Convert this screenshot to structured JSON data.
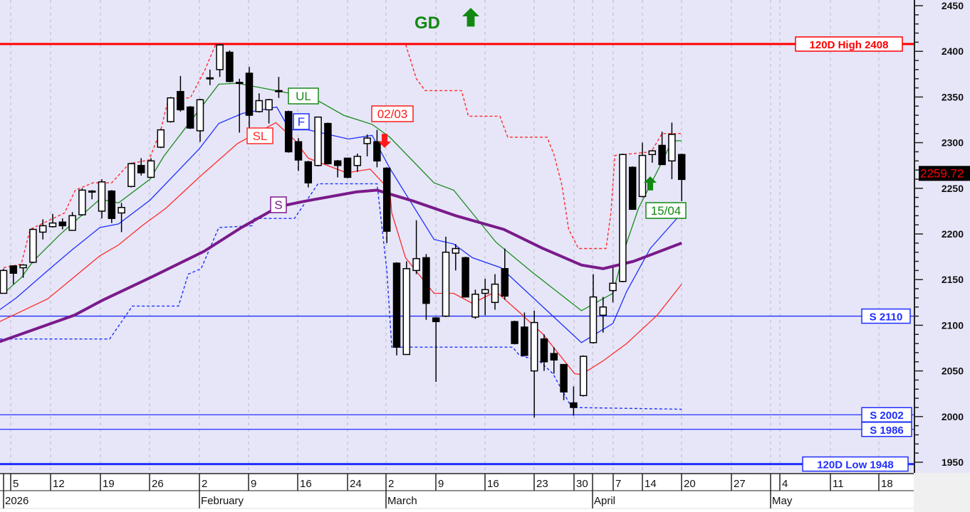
{
  "chart_data": {
    "type": "candlestick",
    "ylim": [
      1950,
      2450
    ],
    "y_ticks": [
      1950,
      2000,
      2050,
      2100,
      2150,
      2200,
      2250,
      2300,
      2350,
      2400,
      2450
    ],
    "grid": "vertical dashed weekly",
    "background_color": "#e6e6f8",
    "x_day_labels": [
      "",
      "5",
      "12",
      "19",
      "26",
      "2",
      "9",
      "16",
      "24",
      "2",
      "9",
      "16",
      "23",
      "30",
      "",
      "7",
      "14",
      "20",
      "27",
      "",
      "4",
      "11",
      "18"
    ],
    "x_month_labels": [
      "2026",
      "February",
      "March",
      "April",
      "May"
    ],
    "last_price": {
      "label": "2259.72",
      "value": 2259.72,
      "color": "#ff0000"
    },
    "candles": [
      [
        2135,
        2162,
        2135,
        2160
      ],
      [
        2165,
        2165,
        2145,
        2157
      ],
      [
        2163,
        2167,
        2152,
        2166
      ],
      [
        2169,
        2206,
        2168,
        2205
      ],
      [
        2202,
        2216,
        2194,
        2209
      ],
      [
        2208,
        2222,
        2207,
        2212
      ],
      [
        2213,
        2217,
        2205,
        2209
      ],
      [
        2204,
        2224,
        2204,
        2220
      ],
      [
        2221,
        2250,
        2220,
        2248
      ],
      [
        2247,
        2248,
        2238,
        2246
      ],
      [
        2225,
        2260,
        2217,
        2257
      ],
      [
        2247,
        2248,
        2212,
        2217
      ],
      [
        2223,
        2234,
        2202,
        2229
      ],
      [
        2252,
        2278,
        2251,
        2277
      ],
      [
        2275,
        2283,
        2264,
        2267
      ],
      [
        2262,
        2283,
        2261,
        2280
      ],
      [
        2295,
        2315,
        2294,
        2314
      ],
      [
        2323,
        2350,
        2322,
        2349
      ],
      [
        2356,
        2373,
        2334,
        2336
      ],
      [
        2339,
        2340,
        2315,
        2316
      ],
      [
        2313,
        2348,
        2301,
        2347
      ],
      [
        2371,
        2380,
        2363,
        2370
      ],
      [
        2380,
        2408,
        2372,
        2407
      ],
      [
        2399,
        2401,
        2366,
        2367
      ],
      [
        2366,
        2370,
        2311,
        2365
      ],
      [
        2376,
        2383,
        2313,
        2330
      ],
      [
        2334,
        2354,
        2333,
        2346
      ],
      [
        2336,
        2348,
        2321,
        2347
      ],
      [
        2356,
        2372,
        2349,
        2357
      ],
      [
        2334,
        2335,
        2289,
        2290
      ],
      [
        2301,
        2305,
        2269,
        2281
      ],
      [
        2279,
        2280,
        2251,
        2256
      ],
      [
        2275,
        2328,
        2274,
        2328
      ],
      [
        2321,
        2322,
        2276,
        2277
      ],
      [
        2280,
        2281,
        2262,
        2275
      ],
      [
        2283,
        2283,
        2261,
        2262
      ],
      [
        2275,
        2288,
        2268,
        2285
      ],
      [
        2299,
        2309,
        2285,
        2305
      ],
      [
        2301,
        2314,
        2273,
        2280
      ],
      [
        2272,
        2273,
        2190,
        2203
      ],
      [
        2168,
        2169,
        2067,
        2076
      ],
      [
        2068,
        2170,
        2068,
        2162
      ],
      [
        2160,
        2215,
        2156,
        2173
      ],
      [
        2174,
        2178,
        2106,
        2124
      ],
      [
        2108,
        2109,
        2038,
        2104
      ],
      [
        2110,
        2197,
        2109,
        2180
      ],
      [
        2179,
        2189,
        2160,
        2184
      ],
      [
        2174,
        2175,
        2131,
        2131
      ],
      [
        2109,
        2139,
        2107,
        2134
      ],
      [
        2135,
        2151,
        2111,
        2139
      ],
      [
        2125,
        2156,
        2117,
        2145
      ],
      [
        2162,
        2184,
        2128,
        2132
      ],
      [
        2104,
        2105,
        2079,
        2080
      ],
      [
        2098,
        2114,
        2066,
        2067
      ],
      [
        2050,
        2116,
        1999,
        2103
      ],
      [
        2085,
        2090,
        2050,
        2060
      ],
      [
        2069,
        2076,
        2047,
        2062
      ],
      [
        2057,
        2057,
        2018,
        2027
      ],
      [
        2015,
        2033,
        2001,
        2010
      ],
      [
        2023,
        2067,
        2022,
        2066
      ],
      [
        2081,
        2156,
        2080,
        2131
      ],
      [
        2111,
        2131,
        2092,
        2120
      ],
      [
        2138,
        2163,
        2125,
        2146
      ],
      [
        2148,
        2288,
        2147,
        2287
      ],
      [
        2273,
        2274,
        2227,
        2227
      ],
      [
        2241,
        2300,
        2240,
        2286
      ],
      [
        2287,
        2292,
        2278,
        2291
      ],
      [
        2297,
        2312,
        2276,
        2276
      ],
      [
        2280,
        2322,
        2260,
        2309
      ],
      [
        2287,
        2288,
        2236,
        2259.72
      ]
    ],
    "candle_format": [
      "open",
      "high",
      "low",
      "close"
    ],
    "series": [
      {
        "name": "UL",
        "color": "#1a8a1a",
        "style": "solid",
        "points": [
          [
            1,
            2135
          ],
          [
            2.8,
            2152
          ],
          [
            4,
            2170
          ],
          [
            6.7,
            2199
          ],
          [
            10.8,
            2238
          ],
          [
            12.7,
            2234
          ],
          [
            15.9,
            2260
          ],
          [
            17.3,
            2285
          ],
          [
            22.9,
            2364
          ],
          [
            24.8,
            2365
          ],
          [
            28.7,
            2357
          ],
          [
            32.5,
            2349
          ],
          [
            35.6,
            2330
          ],
          [
            38.5,
            2320
          ],
          [
            40.3,
            2306
          ],
          [
            44.8,
            2256
          ],
          [
            46.8,
            2248
          ],
          [
            51.1,
            2191
          ],
          [
            54.8,
            2158
          ],
          [
            59.8,
            2116
          ],
          [
            63,
            2135
          ],
          [
            64.2,
            2184
          ],
          [
            65.6,
            2228
          ],
          [
            68,
            2279
          ],
          [
            69,
            2302
          ],
          [
            70,
            2302
          ]
        ]
      },
      {
        "name": "F",
        "color": "#1f2fff",
        "style": "solid",
        "points": [
          [
            0.6,
            2117
          ],
          [
            2.3,
            2130
          ],
          [
            5.5,
            2160
          ],
          [
            7.9,
            2182
          ],
          [
            10.8,
            2207
          ],
          [
            12.7,
            2211
          ],
          [
            15.9,
            2237
          ],
          [
            20,
            2283
          ],
          [
            20.9,
            2293
          ],
          [
            22.9,
            2321
          ],
          [
            25.3,
            2332
          ],
          [
            28.8,
            2339
          ],
          [
            30.1,
            2314
          ],
          [
            32,
            2314
          ],
          [
            36.1,
            2304
          ],
          [
            38.5,
            2308
          ],
          [
            40.3,
            2272
          ],
          [
            44.8,
            2194
          ],
          [
            46.8,
            2189
          ],
          [
            48.7,
            2174
          ],
          [
            51.6,
            2163
          ],
          [
            54.8,
            2131
          ],
          [
            59.8,
            2081
          ],
          [
            63,
            2102
          ],
          [
            64.4,
            2137
          ],
          [
            66.8,
            2184
          ],
          [
            70,
            2223
          ]
        ]
      },
      {
        "name": "SL",
        "color": "#ff2a2a",
        "style": "solid",
        "points": [
          [
            0.6,
            2104
          ],
          [
            5.5,
            2129
          ],
          [
            10.8,
            2176
          ],
          [
            12.7,
            2188
          ],
          [
            15.1,
            2209
          ],
          [
            17.5,
            2228
          ],
          [
            20.9,
            2262
          ],
          [
            24.8,
            2299
          ],
          [
            28.7,
            2322
          ],
          [
            30.6,
            2303
          ],
          [
            32,
            2283
          ],
          [
            35.9,
            2267
          ],
          [
            38.3,
            2271
          ],
          [
            40.3,
            2248
          ],
          [
            40.5,
            2223
          ],
          [
            41.9,
            2174
          ],
          [
            44.8,
            2135
          ],
          [
            46.8,
            2135
          ],
          [
            48.7,
            2124
          ],
          [
            51.1,
            2137
          ],
          [
            53.5,
            2114
          ],
          [
            55.9,
            2090
          ],
          [
            59.1,
            2047
          ],
          [
            59.8,
            2046
          ],
          [
            62,
            2061
          ],
          [
            64.4,
            2080
          ],
          [
            67.5,
            2111
          ],
          [
            70,
            2145
          ]
        ]
      },
      {
        "name": "S",
        "color": "#7a1a8a",
        "style": "thick",
        "points": [
          [
            0.6,
            2082
          ],
          [
            8.2,
            2111
          ],
          [
            11,
            2127
          ],
          [
            16.1,
            2153
          ],
          [
            21.4,
            2181
          ],
          [
            25.2,
            2207
          ],
          [
            29,
            2230
          ],
          [
            31.7,
            2236
          ],
          [
            36.9,
            2246
          ],
          [
            39,
            2248
          ],
          [
            42.7,
            2236
          ],
          [
            47,
            2220
          ],
          [
            51.9,
            2205
          ],
          [
            55.9,
            2184
          ],
          [
            59.8,
            2166
          ],
          [
            62,
            2162
          ],
          [
            65.1,
            2170
          ],
          [
            70,
            2190
          ]
        ]
      },
      {
        "color": "#ff2a2a",
        "style": "dotted",
        "points": [
          [
            1,
            2163
          ],
          [
            2.8,
            2167
          ],
          [
            3.7,
            2205
          ],
          [
            7.2,
            2223
          ],
          [
            8.3,
            2248
          ],
          [
            10.1,
            2256
          ],
          [
            12,
            2256
          ],
          [
            13.8,
            2277
          ],
          [
            15.8,
            2281
          ],
          [
            17,
            2314
          ],
          [
            17.8,
            2349
          ],
          [
            20,
            2349
          ],
          [
            21.5,
            2380
          ],
          [
            22.6,
            2408
          ],
          [
            41.9,
            2408
          ],
          [
            43,
            2370
          ],
          [
            43.9,
            2357
          ],
          [
            47.6,
            2357
          ],
          [
            48.3,
            2329
          ],
          [
            51.5,
            2329
          ],
          [
            52.3,
            2306
          ],
          [
            56.3,
            2306
          ],
          [
            57,
            2287
          ],
          [
            57.8,
            2254
          ],
          [
            58.5,
            2205
          ],
          [
            59.5,
            2184
          ],
          [
            62.3,
            2184
          ],
          [
            62.8,
            2223
          ],
          [
            63.2,
            2286
          ],
          [
            66.9,
            2290
          ],
          [
            68,
            2310
          ],
          [
            70,
            2310
          ]
        ]
      },
      {
        "color": "#1f2fff",
        "style": "dotted",
        "points": [
          [
            0.6,
            2085
          ],
          [
            11.8,
            2085
          ],
          [
            14.1,
            2121
          ],
          [
            18.8,
            2121
          ],
          [
            19.8,
            2156
          ],
          [
            21.1,
            2162
          ],
          [
            22.9,
            2207
          ],
          [
            26.3,
            2209
          ],
          [
            26.5,
            2217
          ],
          [
            30.6,
            2217
          ],
          [
            33,
            2255
          ],
          [
            39,
            2255
          ],
          [
            40,
            2160
          ],
          [
            40.5,
            2076
          ],
          [
            52.8,
            2076
          ],
          [
            53.5,
            2067
          ],
          [
            55.5,
            2061
          ],
          [
            56.9,
            2047
          ],
          [
            58.8,
            2010
          ],
          [
            70,
            2008
          ]
        ]
      }
    ],
    "levels": [
      {
        "label": "120D High 2408",
        "value": 2408,
        "color": "#ff0000",
        "thick": true
      },
      {
        "label": "S 2110",
        "value": 2110,
        "color": "#1f2fff",
        "thick": false
      },
      {
        "label": "S 2002",
        "value": 2002,
        "color": "#1f2fff",
        "thick": false
      },
      {
        "label": "S 1986",
        "value": 1986,
        "color": "#1f2fff",
        "thick": false
      },
      {
        "label": "120D Low 1948",
        "value": 1948,
        "color": "#1f2fff",
        "thick": true
      }
    ],
    "signals": [
      {
        "label": "02/03",
        "direction": "down",
        "color": "#ff1a1a",
        "candle": 40
      },
      {
        "label": "15/04",
        "direction": "up",
        "color": "#118811",
        "candle": 67
      }
    ],
    "headline": {
      "label": "GD",
      "direction": "up",
      "color": "#118811"
    }
  }
}
